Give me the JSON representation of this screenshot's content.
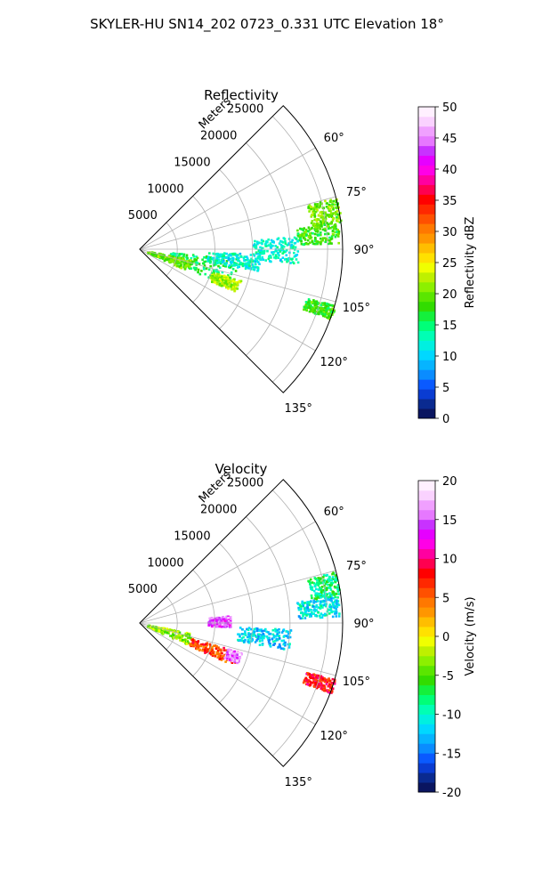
{
  "figure": {
    "suptitle": "SKYLER-HU  SN14_202  0723_0.331 UTC Elevation 18°"
  },
  "chart_data": [
    {
      "type": "heatmap",
      "projection": "polar-sector",
      "title": "Reflectivity",
      "range_label": "Meters",
      "range_ticks": [
        5000,
        10000,
        15000,
        20000,
        25000
      ],
      "rlim": [
        0,
        27000
      ],
      "azimuth_ticks": [
        "60°",
        "75°",
        "90°",
        "105°",
        "120°",
        "135°"
      ],
      "azimuth_tick_values": [
        60,
        75,
        90,
        105,
        120,
        135
      ],
      "azimuth_range": [
        45,
        135
      ],
      "grid": true,
      "colorbar": {
        "label": "Reflectivity dBZ",
        "ticks": [
          "0",
          "5",
          "10",
          "15",
          "20",
          "25",
          "30",
          "35",
          "40",
          "45",
          "50"
        ],
        "range": [
          0,
          50
        ],
        "colors": [
          "#0a1560",
          "#0a2a90",
          "#0a3cd2",
          "#0a5aff",
          "#0a8cff",
          "#06b4ff",
          "#00d8ff",
          "#00f0e0",
          "#00ffb4",
          "#00ff78",
          "#14f03c",
          "#32dc00",
          "#5ae600",
          "#8cf000",
          "#bef000",
          "#f0ff00",
          "#ffe100",
          "#ffbe00",
          "#ff9600",
          "#ff7800",
          "#ff5000",
          "#ff2800",
          "#ff0000",
          "#ff0050",
          "#ff00a0",
          "#ff00e6",
          "#e600ff",
          "#c832ff",
          "#e678ff",
          "#f0a0ff",
          "#fad2ff",
          "#fff0ff"
        ],
        "colors_note": "n/a"
      },
      "echo_regions": [
        {
          "az": [
            75,
            82
          ],
          "r": [
            23000,
            27000
          ],
          "value": 20
        },
        {
          "az": [
            82,
            88
          ],
          "r": [
            21000,
            26500
          ],
          "value": 18
        },
        {
          "az": [
            95,
            112
          ],
          "r": [
            4000,
            13000
          ],
          "value": 16
        },
        {
          "az": [
            100,
            114
          ],
          "r": [
            1000,
            7000
          ],
          "value": 20
        },
        {
          "az": [
            107,
            114
          ],
          "r": [
            10000,
            14000
          ],
          "value": 22
        },
        {
          "az": [
            85,
            95
          ],
          "r": [
            15000,
            21000
          ],
          "value": 12
        },
        {
          "az": [
            92,
            100
          ],
          "r": [
            9000,
            16000
          ],
          "value": 12
        },
        {
          "az": [
            106,
            110
          ],
          "r": [
            23000,
            27000
          ],
          "value": 18
        }
      ]
    },
    {
      "type": "heatmap",
      "projection": "polar-sector",
      "title": "Velocity",
      "range_label": "Meters",
      "range_ticks": [
        5000,
        10000,
        15000,
        20000,
        25000
      ],
      "rlim": [
        0,
        27000
      ],
      "azimuth_ticks": [
        "60°",
        "75°",
        "90°",
        "105°",
        "120°",
        "135°"
      ],
      "azimuth_tick_values": [
        60,
        75,
        90,
        105,
        120,
        135
      ],
      "azimuth_range": [
        45,
        135
      ],
      "grid": true,
      "colorbar": {
        "label": "Velocity (m/s)",
        "ticks": [
          "-20",
          "-15",
          "-10",
          "-5",
          "0",
          "5",
          "10",
          "15",
          "20"
        ],
        "range": [
          -20,
          20
        ],
        "colors": [
          "#0a1560",
          "#0a2a90",
          "#0a3cd2",
          "#0a5aff",
          "#0a8cff",
          "#06b4ff",
          "#00d8ff",
          "#00f0e0",
          "#00ffb4",
          "#00ff78",
          "#14f03c",
          "#32dc00",
          "#5ae600",
          "#8cf000",
          "#bef000",
          "#f0ff00",
          "#ffe100",
          "#ffbe00",
          "#ff9600",
          "#ff7800",
          "#ff5000",
          "#ff2800",
          "#ff0000",
          "#ff0050",
          "#ff00a0",
          "#ff00e6",
          "#e600ff",
          "#c832ff",
          "#e678ff",
          "#f0a0ff",
          "#fad2ff",
          "#fff0ff"
        ]
      },
      "echo_regions": [
        {
          "az": [
            75,
            82
          ],
          "r": [
            23000,
            27000
          ],
          "value": -8
        },
        {
          "az": [
            82,
            88
          ],
          "r": [
            21000,
            26500
          ],
          "value": -11
        },
        {
          "az": [
            100,
            114
          ],
          "r": [
            1000,
            7000
          ],
          "value": -3
        },
        {
          "az": [
            106,
            114
          ],
          "r": [
            7000,
            14000
          ],
          "value": 6
        },
        {
          "az": [
            106,
            112
          ],
          "r": [
            12000,
            14000
          ],
          "value": 16
        },
        {
          "az": [
            85,
            92
          ],
          "r": [
            9000,
            12000
          ],
          "value": 15
        },
        {
          "az": [
            92,
            100
          ],
          "r": [
            13000,
            20000
          ],
          "value": -12
        },
        {
          "az": [
            106,
            110
          ],
          "r": [
            23000,
            27000
          ],
          "value": 8
        }
      ]
    }
  ]
}
